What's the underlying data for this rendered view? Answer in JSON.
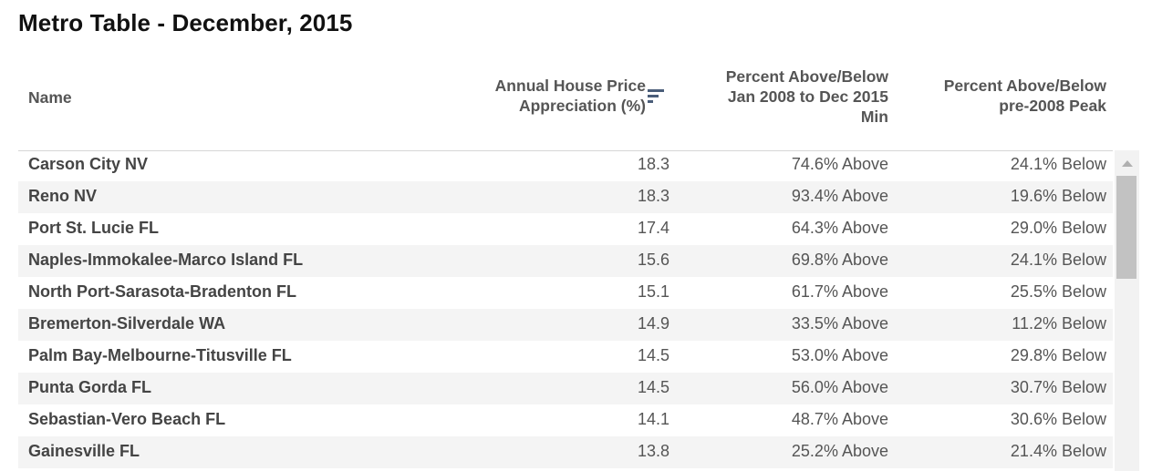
{
  "title": "Metro Table - December, 2015",
  "columns": {
    "name": "Name",
    "appreciation": "Annual House Price Appreciation (%)",
    "jan_min": "Percent Above/Below Jan 2008 to Dec 2015 Min",
    "peak": "Percent Above/Below pre-2008 Peak"
  },
  "sort_icon": "sort-descending-icon",
  "rows": [
    {
      "name": "Carson City NV",
      "appreciation": "18.3",
      "jan_min": "74.6% Above",
      "peak": "24.1% Below"
    },
    {
      "name": "Reno NV",
      "appreciation": "18.3",
      "jan_min": "93.4% Above",
      "peak": "19.6% Below"
    },
    {
      "name": "Port St. Lucie FL",
      "appreciation": "17.4",
      "jan_min": "64.3% Above",
      "peak": "29.0% Below"
    },
    {
      "name": "Naples-Immokalee-Marco Island FL",
      "appreciation": "15.6",
      "jan_min": "69.8% Above",
      "peak": "24.1% Below"
    },
    {
      "name": "North Port-Sarasota-Bradenton FL",
      "appreciation": "15.1",
      "jan_min": "61.7% Above",
      "peak": "25.5% Below"
    },
    {
      "name": "Bremerton-Silverdale WA",
      "appreciation": "14.9",
      "jan_min": "33.5% Above",
      "peak": "11.2% Below"
    },
    {
      "name": "Palm Bay-Melbourne-Titusville FL",
      "appreciation": "14.5",
      "jan_min": "53.0% Above",
      "peak": "29.8% Below"
    },
    {
      "name": "Punta Gorda FL",
      "appreciation": "14.5",
      "jan_min": "56.0% Above",
      "peak": "30.7% Below"
    },
    {
      "name": "Sebastian-Vero Beach FL",
      "appreciation": "14.1",
      "jan_min": "48.7% Above",
      "peak": "30.6% Below"
    },
    {
      "name": "Gainesville FL",
      "appreciation": "13.8",
      "jan_min": "25.2% Above",
      "peak": "21.4% Below"
    }
  ]
}
